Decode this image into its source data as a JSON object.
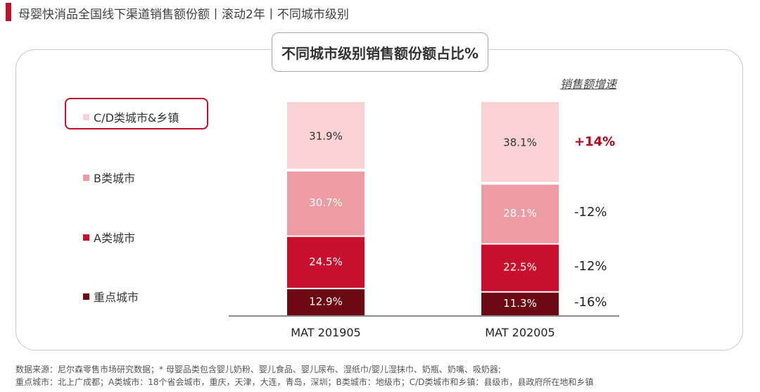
{
  "header": {
    "title": "母婴快消品全国线下渠道销售额份额丨滚动2年丨不同城市级别"
  },
  "chart_data": {
    "type": "bar",
    "stacked": true,
    "title": "不同城市级别销售额份额占比%",
    "categories": [
      "MAT 201905",
      "MAT 202005"
    ],
    "series": [
      {
        "name": "重点城市",
        "values": [
          12.9,
          11.3
        ],
        "color": "#6b0a12",
        "label_color": "#ffffff"
      },
      {
        "name": "A类城市",
        "values": [
          24.5,
          22.5
        ],
        "color": "#c8102e",
        "label_color": "#ffffff"
      },
      {
        "name": "B类城市",
        "values": [
          30.7,
          28.1
        ],
        "color": "#ec9ca2",
        "label_color": "#ffffff"
      },
      {
        "name": "C/D类城市&乡镇",
        "values": [
          31.9,
          38.1
        ],
        "color": "#f9d2d6",
        "label_color": "#333333"
      }
    ],
    "value_labels": [
      [
        "12.9%",
        "11.3%"
      ],
      [
        "24.5%",
        "22.5%"
      ],
      [
        "30.7%",
        "28.1%"
      ],
      [
        "31.9%",
        "38.1%"
      ]
    ],
    "ylim": [
      0,
      100
    ],
    "legend_position": "left",
    "highlighted_series": "C/D类城市&乡镇",
    "growth_header": "销售额增速",
    "growth": [
      "-16%",
      "-12%",
      "-12%",
      "+14%"
    ]
  },
  "footer": {
    "line1": "数据来源：尼尔森零售市场研究数据；* 母婴品类包含婴儿奶粉、婴儿食品、婴儿尿布、湿纸巾/婴儿湿抹巾、奶瓶、奶嘴、吸奶器;",
    "line2": "重点城市：北上广成都；A类城市：18个省会城市，重庆，天津，大连，青岛，深圳；B类城市：地级市；C/D类城市和乡镇：县级市，县政府所在地和乡镇"
  }
}
